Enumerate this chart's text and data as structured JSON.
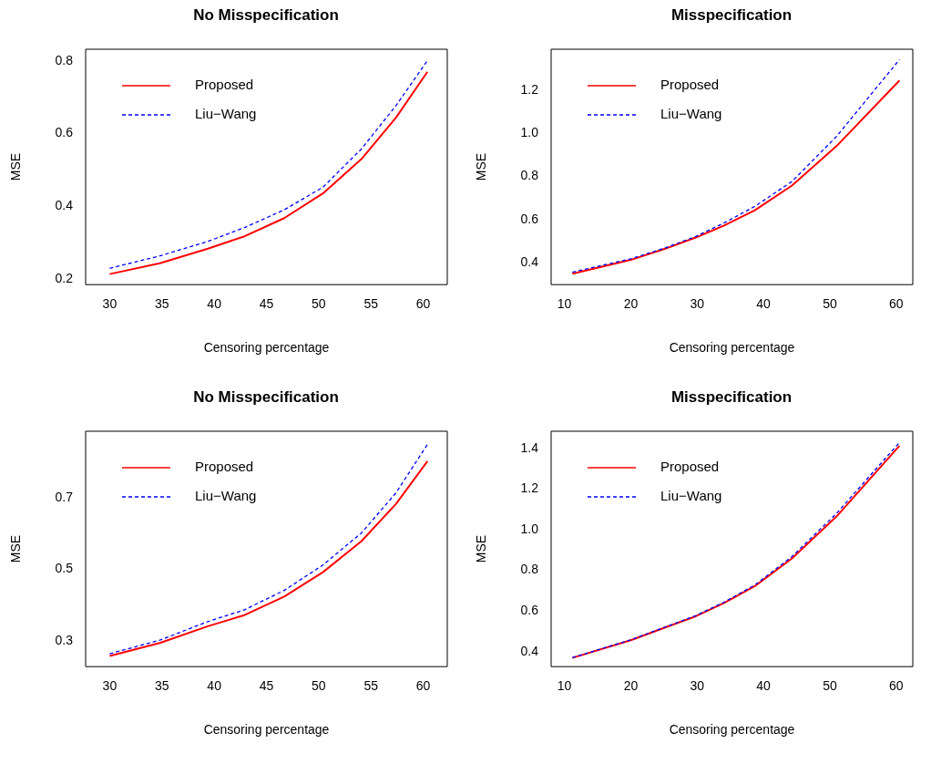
{
  "chart_data": [
    {
      "type": "line",
      "title": "No Misspecification",
      "xlabel": "Censoring percentage",
      "ylabel": "MSE",
      "xlim": [
        27.7,
        62.3
      ],
      "xticks": [
        30,
        35,
        40,
        45,
        50,
        55,
        60
      ],
      "ylim": [
        0.184,
        0.832
      ],
      "yticks": [
        {
          "value": 0.2,
          "label": "0.2"
        },
        {
          "value": 0.4,
          "label": "0.4"
        },
        {
          "value": 0.6,
          "label": "0.6"
        },
        {
          "value": 0.8,
          "label": "0.8"
        }
      ],
      "legend": "top left",
      "grid": false,
      "marker": "none",
      "x": [
        30,
        34.8,
        39.4,
        42.9,
        46.7,
        50.4,
        54.1,
        57.4,
        60.4
      ],
      "series": [
        {
          "name": "Proposed",
          "color": "#ff0000",
          "line_style": "solid",
          "values": [
            0.213,
            0.243,
            0.283,
            0.317,
            0.367,
            0.435,
            0.53,
            0.644,
            0.77
          ]
        },
        {
          "name": "Liu−Wang",
          "color": "#0000ff",
          "line_style": "dashed",
          "values": [
            0.229,
            0.263,
            0.303,
            0.341,
            0.39,
            0.452,
            0.558,
            0.677,
            0.801
          ]
        }
      ]
    },
    {
      "type": "line",
      "title": "Misspecification",
      "xlabel": "Censoring percentage",
      "ylabel": "MSE",
      "xlim": [
        8,
        62.5
      ],
      "xticks": [
        10,
        20,
        30,
        40,
        50,
        60
      ],
      "ylim": [
        0.297,
        1.392
      ],
      "yticks": [
        {
          "value": 0.4,
          "label": "0.4"
        },
        {
          "value": 0.6,
          "label": "0.6"
        },
        {
          "value": 0.8,
          "label": "0.8"
        },
        {
          "value": 1,
          "label": "1.0"
        },
        {
          "value": 1.2,
          "label": "1.2"
        }
      ],
      "legend": "top left",
      "grid": false,
      "marker": "none",
      "x": [
        11.2,
        20,
        25.2,
        29.8,
        34,
        38.7,
        44.3,
        51,
        60.5
      ],
      "series": [
        {
          "name": "Proposed",
          "color": "#ff0000",
          "line_style": "solid",
          "values": [
            0.348,
            0.412,
            0.464,
            0.516,
            0.571,
            0.643,
            0.758,
            0.941,
            1.247
          ]
        },
        {
          "name": "Liu−Wang",
          "color": "#0000ff",
          "line_style": "dashed",
          "values": [
            0.355,
            0.417,
            0.468,
            0.521,
            0.583,
            0.661,
            0.777,
            0.986,
            1.344
          ]
        }
      ]
    },
    {
      "type": "line",
      "title": "No Misspecification",
      "xlabel": "Censoring percentage",
      "ylabel": "MSE",
      "xlim": [
        27.7,
        62.3
      ],
      "xticks": [
        30,
        35,
        40,
        45,
        50,
        55,
        60
      ],
      "ylim": [
        0.228,
        0.886
      ],
      "yticks": [
        {
          "value": 0.3,
          "label": "0.3"
        },
        {
          "value": 0.5,
          "label": "0.5"
        },
        {
          "value": 0.7,
          "label": "0.7"
        }
      ],
      "legend": "top left",
      "grid": false,
      "marker": "none",
      "x": [
        30,
        34.8,
        39.4,
        42.9,
        46.7,
        50.4,
        54.1,
        57.4,
        60.4
      ],
      "series": [
        {
          "name": "Proposed",
          "color": "#ff0000",
          "line_style": "solid",
          "values": [
            0.258,
            0.294,
            0.341,
            0.372,
            0.424,
            0.492,
            0.579,
            0.683,
            0.802
          ]
        },
        {
          "name": "Liu−Wang",
          "color": "#0000ff",
          "line_style": "dashed",
          "values": [
            0.264,
            0.302,
            0.354,
            0.387,
            0.441,
            0.512,
            0.602,
            0.714,
            0.849
          ]
        }
      ]
    },
    {
      "type": "line",
      "title": "Misspecification",
      "xlabel": "Censoring percentage",
      "ylabel": "MSE",
      "xlim": [
        8,
        62.5
      ],
      "xticks": [
        10,
        20,
        30,
        40,
        50,
        60
      ],
      "ylim": [
        0.326,
        1.485
      ],
      "yticks": [
        {
          "value": 0.4,
          "label": "0.4"
        },
        {
          "value": 0.6,
          "label": "0.6"
        },
        {
          "value": 0.8,
          "label": "0.8"
        },
        {
          "value": 1,
          "label": "1.0"
        },
        {
          "value": 1.2,
          "label": "1.2"
        },
        {
          "value": 1.4,
          "label": "1.4"
        }
      ],
      "legend": "top left",
      "grid": false,
      "marker": "none",
      "x": [
        11.2,
        20,
        25.2,
        29.8,
        34,
        38.7,
        44.3,
        51,
        60.5
      ],
      "series": [
        {
          "name": "Proposed",
          "color": "#ff0000",
          "line_style": "solid",
          "values": [
            0.369,
            0.456,
            0.519,
            0.574,
            0.638,
            0.722,
            0.859,
            1.065,
            1.414
          ]
        },
        {
          "name": "Liu−Wang",
          "color": "#0000ff",
          "line_style": "dashed",
          "values": [
            0.37,
            0.458,
            0.521,
            0.577,
            0.642,
            0.728,
            0.868,
            1.08,
            1.43
          ]
        }
      ]
    }
  ]
}
